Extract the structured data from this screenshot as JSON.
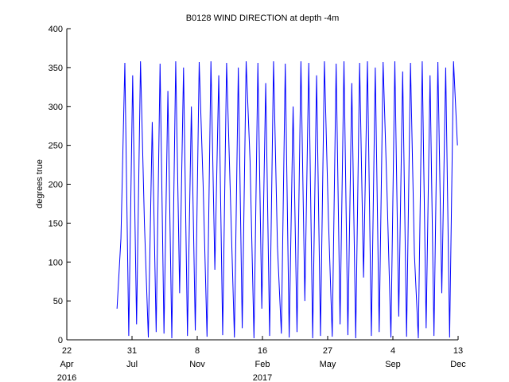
{
  "chart_data": {
    "type": "line",
    "title": "B0128 WIND DIRECTION at depth -4m",
    "ylabel": "degrees true",
    "x": [
      "2016-07-08",
      "2016-07-14",
      "2016-07-20",
      "2016-07-26",
      "2016-08-01",
      "2016-08-07",
      "2016-08-13",
      "2016-08-19",
      "2016-08-25",
      "2016-08-31",
      "2016-09-06",
      "2016-09-12",
      "2016-09-18",
      "2016-09-24",
      "2016-09-30",
      "2016-10-06",
      "2016-10-12",
      "2016-10-18",
      "2016-10-24",
      "2016-10-30",
      "2016-11-05",
      "2016-11-11",
      "2016-11-17",
      "2016-11-23",
      "2016-11-29",
      "2016-12-05",
      "2016-12-11",
      "2016-12-17",
      "2016-12-23",
      "2016-12-29",
      "2017-01-04",
      "2017-01-10",
      "2017-01-16",
      "2017-01-22",
      "2017-01-28",
      "2017-02-03",
      "2017-02-09",
      "2017-02-15",
      "2017-02-21",
      "2017-02-27",
      "2017-03-05",
      "2017-03-11",
      "2017-03-17",
      "2017-03-23",
      "2017-03-29",
      "2017-04-04",
      "2017-04-10",
      "2017-04-16",
      "2017-04-22",
      "2017-04-28",
      "2017-05-04",
      "2017-05-10",
      "2017-05-16",
      "2017-05-22",
      "2017-05-28",
      "2017-06-03",
      "2017-06-09",
      "2017-06-15",
      "2017-06-21",
      "2017-06-27",
      "2017-07-03",
      "2017-07-09",
      "2017-07-15",
      "2017-07-21",
      "2017-07-27",
      "2017-08-02",
      "2017-08-08",
      "2017-08-14",
      "2017-08-20",
      "2017-08-26",
      "2017-09-01",
      "2017-09-07",
      "2017-09-13",
      "2017-09-19",
      "2017-09-25",
      "2017-10-01",
      "2017-10-07",
      "2017-10-13",
      "2017-10-19",
      "2017-10-25",
      "2017-10-31",
      "2017-11-06",
      "2017-11-12",
      "2017-11-18",
      "2017-11-24",
      "2017-11-30",
      "2017-12-06",
      "2017-12-12"
    ],
    "series": [
      {
        "name": "wind direction",
        "color": "#0000ff",
        "values": [
          40,
          130,
          356,
          5,
          340,
          20,
          358,
          150,
          3,
          280,
          10,
          355,
          8,
          320,
          2,
          358,
          60,
          350,
          5,
          300,
          12,
          357,
          200,
          4,
          358,
          90,
          340,
          6,
          356,
          180,
          3,
          350,
          15,
          358,
          230,
          2,
          356,
          40,
          330,
          5,
          358,
          120,
          8,
          355,
          3,
          300,
          10,
          358,
          50,
          356,
          2,
          340,
          5,
          358,
          160,
          4,
          355,
          20,
          358,
          6,
          330,
          2,
          356,
          80,
          358,
          5,
          350,
          10,
          357,
          190,
          3,
          358,
          30,
          345,
          4,
          356,
          110,
          2,
          358,
          15,
          340,
          5,
          357,
          60,
          350,
          3,
          358,
          250
        ]
      }
    ],
    "xlim": [
      "2016-04-22",
      "2017-12-13"
    ],
    "xticks": [
      {
        "value": "2016-04-22",
        "label": [
          "22",
          "Apr",
          "2016"
        ]
      },
      {
        "value": "2016-07-31",
        "label": [
          "31",
          "Jul"
        ]
      },
      {
        "value": "2016-11-08",
        "label": [
          "8",
          "Nov"
        ]
      },
      {
        "value": "2017-02-16",
        "label": [
          "16",
          "Feb",
          "2017"
        ]
      },
      {
        "value": "2017-05-27",
        "label": [
          "27",
          "May"
        ]
      },
      {
        "value": "2017-09-04",
        "label": [
          "4",
          "Sep"
        ]
      },
      {
        "value": "2017-12-13",
        "label": [
          "13",
          "Dec"
        ]
      }
    ],
    "ylim": [
      0,
      400
    ],
    "yticks": [
      0,
      50,
      100,
      150,
      200,
      250,
      300,
      350,
      400
    ],
    "grid": false
  }
}
